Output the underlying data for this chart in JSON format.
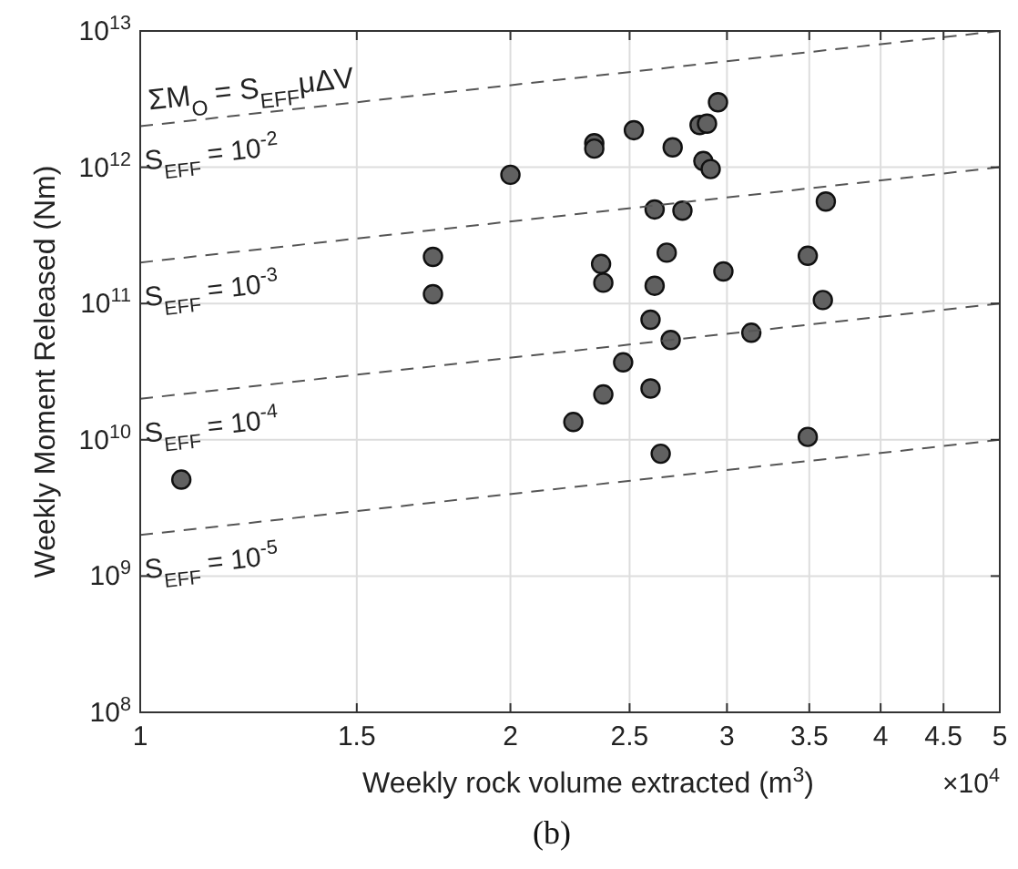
{
  "chart_data": {
    "type": "scatter",
    "xlabel": "Weekly rock volume extracted (m$^{3}$)",
    "ylabel": "Weekly Moment Released (Nm)",
    "log": "xy",
    "grid": true,
    "xlim": [
      1,
      5
    ],
    "xticks": [
      1,
      1.5,
      2,
      2.5,
      3,
      3.5,
      4,
      4.5,
      5
    ],
    "ylim": [
      100000000,
      10000000000000
    ],
    "yticks": [
      {
        "value": 100000000,
        "label": "10$^{8}$"
      },
      {
        "value": 1000000000,
        "label": "10$^{9}$"
      },
      {
        "value": 10000000000,
        "label": "10$^{10}$"
      },
      {
        "value": 100000000000,
        "label": "10$^{11}$"
      },
      {
        "value": 1000000000000,
        "label": "10$^{12}$"
      },
      {
        "value": 10000000000000,
        "label": "10$^{13}$"
      }
    ],
    "annotations": [
      "ΣM$_{O}$ = S$_{EFF}$μΔV",
      "×10$^{4}$",
      "(b)"
    ],
    "series": [
      {
        "marker": "circle",
        "color": "#616161",
        "x": [
          1.08,
          1.73,
          1.73,
          2.0,
          2.25,
          2.95,
          2.52,
          2.34,
          2.34,
          2.71,
          2.85,
          2.89,
          2.87,
          2.91,
          3.61,
          2.62,
          2.76,
          2.37,
          2.38,
          2.68,
          2.62,
          2.98,
          3.49,
          3.59,
          2.6,
          2.7,
          3.14,
          2.47,
          2.38,
          2.6,
          3.49,
          2.65
        ],
        "values": [
          5100000000.0,
          220000000000.0,
          117000000000.0,
          880000000000.0,
          13500000000.0,
          3000000000000.0,
          1870000000000.0,
          1500000000000.0,
          1370000000000.0,
          1400000000000.0,
          2040000000000.0,
          2090000000000.0,
          1110000000000.0,
          970000000000.0,
          560000000000.0,
          490000000000.0,
          480000000000.0,
          195000000000.0,
          142000000000.0,
          236000000000.0,
          135000000000.0,
          172000000000.0,
          224000000000.0,
          106000000000.0,
          76000000000.0,
          54000000000.0,
          61000000000.0,
          37000000000.0,
          21500000000.0,
          23800000000.0,
          10500000000.0,
          7900000000.0
        ]
      },
      {
        "type": "line",
        "name": "S$_{EFF}$ = 10$^{-2}$",
        "color": "#555555",
        "line_style": "dashed",
        "x": [
          1,
          5
        ],
        "values": [
          2000000000000.0,
          10000000000000.0
        ],
        "marker": "none"
      },
      {
        "type": "line",
        "name": "S$_{EFF}$ = 10$^{-3}$",
        "color": "#555555",
        "line_style": "dashed",
        "x": [
          1,
          5
        ],
        "values": [
          200000000000.0,
          1000000000000.0
        ],
        "marker": "none"
      },
      {
        "type": "line",
        "name": "S$_{EFF}$ = 10$^{-4}$",
        "color": "#555555",
        "line_style": "dashed",
        "x": [
          1,
          5
        ],
        "values": [
          20000000000.0,
          100000000000.0
        ],
        "marker": "none"
      },
      {
        "type": "line",
        "name": "S$_{EFF}$ = 10$^{-5}$",
        "color": "#555555",
        "line_style": "dashed",
        "x": [
          1,
          5
        ],
        "values": [
          2000000000.0,
          10000000000.0
        ],
        "marker": "none"
      }
    ]
  }
}
